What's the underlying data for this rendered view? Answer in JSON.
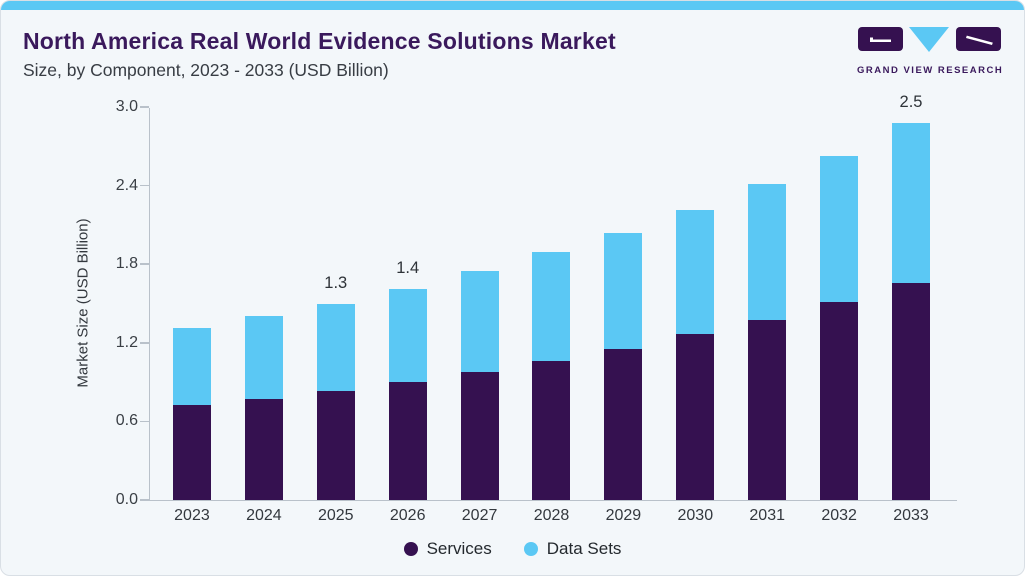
{
  "page": {
    "background": "#f3f7fa",
    "accent_blue": "#5bc8f4",
    "brand_purple": "#351150",
    "title_purple": "#3a195c",
    "axis_line_color": "#b9c1ca"
  },
  "header": {
    "title": "North America Real World Evidence Solutions Market",
    "subtitle": "Size, by Component, 2023 - 2033 (USD Billion)"
  },
  "logo": {
    "text": "GRAND VIEW RESEARCH"
  },
  "chart_data": {
    "type": "bar",
    "stacked": true,
    "title": "North America Real World Evidence Solutions Market Size, by Component, 2023 - 2033 (USD Billion)",
    "categories": [
      "2023",
      "2024",
      "2025",
      "2026",
      "2027",
      "2028",
      "2029",
      "2030",
      "2031",
      "2032",
      "2033"
    ],
    "series": [
      {
        "name": "Services",
        "color": "#351150",
        "values": [
          0.63,
          0.67,
          0.72,
          0.78,
          0.85,
          0.92,
          1.0,
          1.1,
          1.19,
          1.31,
          1.44
        ]
      },
      {
        "name": "Data Sets",
        "color": "#5bc8f4",
        "values": [
          0.51,
          0.55,
          0.58,
          0.62,
          0.67,
          0.72,
          0.77,
          0.82,
          0.9,
          0.97,
          1.06
        ]
      }
    ],
    "totals": [
      1.14,
      1.22,
      1.3,
      1.4,
      1.52,
      1.64,
      1.77,
      1.92,
      2.09,
      2.28,
      2.5
    ],
    "bar_labels": {
      "2025": "1.3",
      "2026": "1.4",
      "2033": "2.5"
    },
    "xlabel": "",
    "ylabel": "Market Size (USD Billion)",
    "yticks": [
      "0.0",
      "0.6",
      "1.2",
      "1.8",
      "2.4",
      "3.0"
    ],
    "ylim": [
      0.0,
      3.0
    ],
    "grid": false,
    "legend_position": "bottom"
  }
}
